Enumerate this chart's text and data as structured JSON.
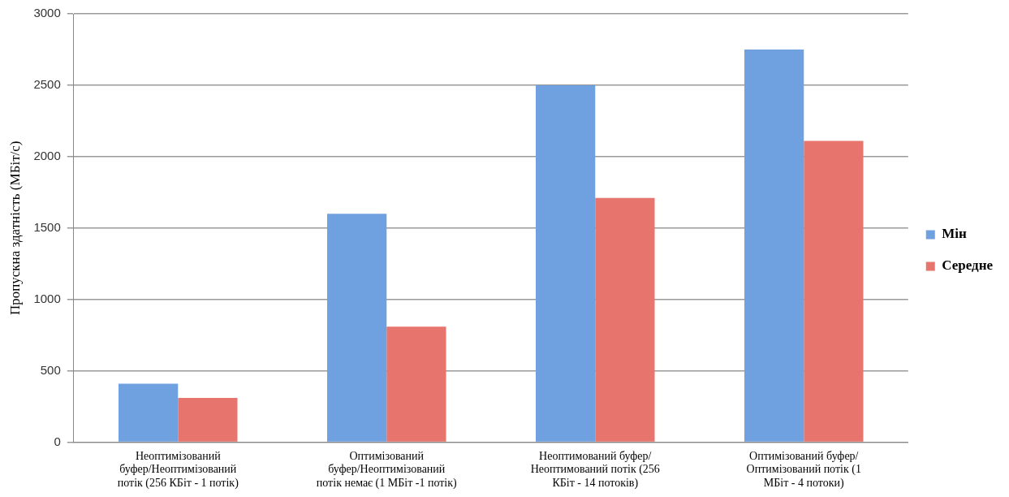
{
  "chart_data": {
    "type": "bar",
    "ylabel": "Пропускна здатність (МБіт/с)",
    "categories": [
      "Неоптимізований буфер/Неоптимізований потік (256 КБіт - 1 потік)",
      "Оптимізований буфер/Неоптимізований потік немає (1 МБіт -1 потік)",
      "Неоптимований буфер/ Неоптимований потік (256 КБіт - 14 потоків)",
      "Оптимізований буфер/ Оптимізований потік (1 МБіт - 4 потоки)"
    ],
    "series": [
      {
        "name": "Мін",
        "color": "#6fa0e0",
        "values": [
          410,
          1600,
          2500,
          2750
        ]
      },
      {
        "name": "Середне",
        "color": "#e8756d",
        "values": [
          310,
          810,
          1710,
          2110
        ]
      }
    ],
    "ylim": [
      0,
      3000
    ],
    "yticks": [
      0,
      500,
      1000,
      1500,
      2000,
      2500,
      3000
    ],
    "grid": "y",
    "legend": "right"
  }
}
